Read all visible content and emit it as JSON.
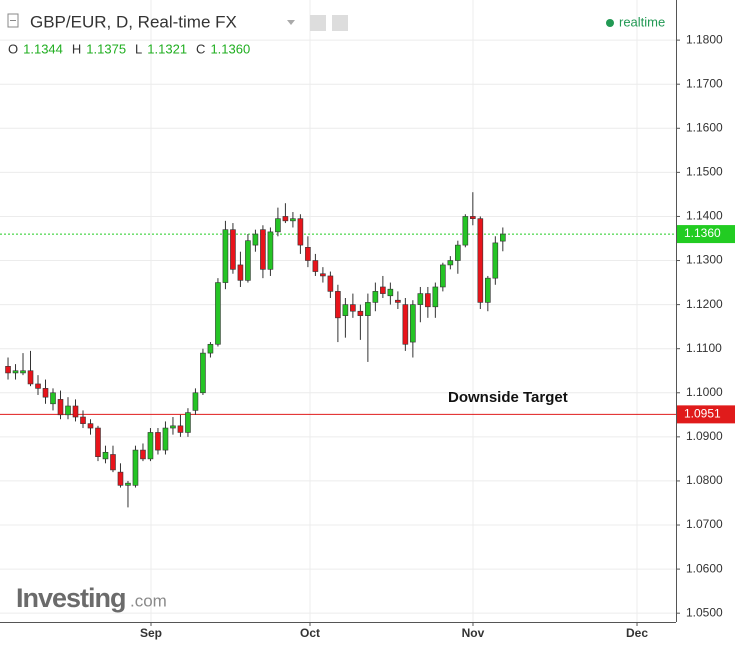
{
  "header": {
    "title": "GBP/EUR, D, Real-time FX",
    "ohlc": [
      {
        "key": "O",
        "text": "1.1344"
      },
      {
        "key": "H",
        "text": "1.1375"
      },
      {
        "key": "L",
        "text": "1.1321"
      },
      {
        "key": "C",
        "text": "1.1360"
      }
    ],
    "status": "realtime",
    "logo": "Investing",
    "logo_suffix": ".com"
  },
  "chart_data": {
    "type": "candlestick",
    "x": [
      0,
      1,
      2,
      3,
      4,
      5,
      6,
      7,
      8,
      9,
      10,
      11,
      12,
      13,
      14,
      15,
      16,
      17,
      18,
      19,
      20,
      21,
      22,
      23,
      24,
      25,
      26,
      27,
      28,
      29,
      30,
      31,
      32,
      33,
      34,
      35,
      36,
      37,
      38,
      39,
      40,
      41,
      42,
      43,
      44,
      45,
      46,
      47,
      48,
      49,
      50,
      51,
      52,
      53,
      54,
      55,
      56,
      57,
      58,
      59,
      60,
      61,
      62,
      63,
      64,
      65,
      66
    ],
    "open": [
      1.106,
      1.1045,
      1.1045,
      1.105,
      1.102,
      1.101,
      1.0975,
      1.0985,
      1.095,
      1.097,
      1.0945,
      1.093,
      1.092,
      1.085,
      1.086,
      1.082,
      1.079,
      1.079,
      1.087,
      1.085,
      1.091,
      1.087,
      1.092,
      1.0925,
      1.091,
      1.096,
      1.1,
      1.109,
      1.111,
      1.125,
      1.137,
      1.129,
      1.1255,
      1.1335,
      1.137,
      1.128,
      1.1365,
      1.14,
      1.139,
      1.1395,
      1.133,
      1.13,
      1.127,
      1.1265,
      1.123,
      1.1175,
      1.12,
      1.1185,
      1.1175,
      1.1205,
      1.124,
      1.122,
      1.121,
      1.12,
      1.1115,
      1.12,
      1.1225,
      1.1195,
      1.124,
      1.129,
      1.13,
      1.1335,
      1.14,
      1.1395,
      1.1205,
      1.126,
      1.1344
    ],
    "high": [
      1.108,
      1.1065,
      1.109,
      1.1095,
      1.104,
      1.103,
      1.101,
      1.1005,
      1.099,
      1.0985,
      1.096,
      1.094,
      1.0925,
      1.088,
      1.088,
      1.084,
      1.08,
      1.088,
      1.0885,
      1.092,
      1.092,
      1.0935,
      1.0945,
      1.095,
      1.0965,
      1.101,
      1.11,
      1.1115,
      1.126,
      1.139,
      1.1385,
      1.132,
      1.136,
      1.137,
      1.138,
      1.1375,
      1.142,
      1.143,
      1.141,
      1.1405,
      1.1355,
      1.1315,
      1.1285,
      1.1275,
      1.1245,
      1.1215,
      1.1225,
      1.12,
      1.1225,
      1.125,
      1.1265,
      1.125,
      1.123,
      1.1215,
      1.121,
      1.124,
      1.124,
      1.125,
      1.1295,
      1.131,
      1.1345,
      1.1405,
      1.1455,
      1.14,
      1.1265,
      1.1355,
      1.1375
    ],
    "low": [
      1.103,
      1.103,
      1.104,
      1.1015,
      1.0995,
      1.0975,
      1.096,
      1.094,
      1.094,
      1.0935,
      1.092,
      1.0905,
      1.0845,
      1.084,
      1.082,
      1.0785,
      1.074,
      1.0785,
      1.0845,
      1.0845,
      1.086,
      1.086,
      1.0905,
      1.09,
      1.09,
      1.095,
      1.0995,
      1.108,
      1.1105,
      1.1235,
      1.127,
      1.124,
      1.125,
      1.132,
      1.126,
      1.1265,
      1.1355,
      1.1385,
      1.1375,
      1.1315,
      1.1285,
      1.1265,
      1.125,
      1.1215,
      1.1115,
      1.1125,
      1.117,
      1.112,
      1.107,
      1.1185,
      1.1215,
      1.12,
      1.119,
      1.1095,
      1.108,
      1.116,
      1.117,
      1.117,
      1.123,
      1.128,
      1.127,
      1.133,
      1.138,
      1.119,
      1.1185,
      1.1245,
      1.1321
    ],
    "close": [
      1.1045,
      1.105,
      1.105,
      1.102,
      1.101,
      1.099,
      1.1,
      1.095,
      1.097,
      1.0945,
      1.093,
      1.092,
      1.0855,
      1.0865,
      1.0825,
      1.079,
      1.0795,
      1.087,
      1.085,
      1.091,
      1.087,
      1.092,
      1.0925,
      1.091,
      1.0955,
      1.1,
      1.109,
      1.111,
      1.125,
      1.137,
      1.128,
      1.1255,
      1.1345,
      1.136,
      1.128,
      1.1365,
      1.1395,
      1.139,
      1.1395,
      1.1335,
      1.13,
      1.1275,
      1.1265,
      1.123,
      1.117,
      1.12,
      1.1185,
      1.1175,
      1.1205,
      1.123,
      1.1225,
      1.1235,
      1.1205,
      1.111,
      1.12,
      1.1225,
      1.1195,
      1.124,
      1.129,
      1.13,
      1.1335,
      1.14,
      1.1395,
      1.1205,
      1.126,
      1.134,
      1.136
    ],
    "up_color": "#25c425",
    "down_color": "#e8141b",
    "xlim": [
      -1.07,
      89.1
    ],
    "xticks": [
      {
        "value": 19.07,
        "label": "Sep"
      },
      {
        "value": 40.28,
        "label": "Oct"
      },
      {
        "value": 62.02,
        "label": "Nov"
      },
      {
        "value": 83.9,
        "label": "Dec"
      }
    ],
    "ylim": [
      1.048,
      1.1891
    ],
    "yticks": [
      {
        "value": 1.05,
        "label": "1.0500"
      },
      {
        "value": 1.06,
        "label": "1.0600"
      },
      {
        "value": 1.07,
        "label": "1.0700"
      },
      {
        "value": 1.08,
        "label": "1.0800"
      },
      {
        "value": 1.09,
        "label": "1.0900"
      },
      {
        "value": 1.1,
        "label": "1.1000"
      },
      {
        "value": 1.11,
        "label": "1.1100"
      },
      {
        "value": 1.12,
        "label": "1.1200"
      },
      {
        "value": 1.13,
        "label": "1.1300"
      },
      {
        "value": 1.14,
        "label": "1.1400"
      },
      {
        "value": 1.15,
        "label": "1.1500"
      },
      {
        "value": 1.16,
        "label": "1.1600"
      },
      {
        "value": 1.17,
        "label": "1.1700"
      },
      {
        "value": 1.18,
        "label": "1.1800"
      }
    ],
    "grid": true,
    "lines": [
      {
        "value": 1.136,
        "label": "1.1360",
        "color": "#22cc22",
        "dotted": true
      },
      {
        "value": 1.0951,
        "label": "1.0951",
        "color": "#e01b1b",
        "dotted": false
      }
    ],
    "annotation": "Downside Target"
  }
}
